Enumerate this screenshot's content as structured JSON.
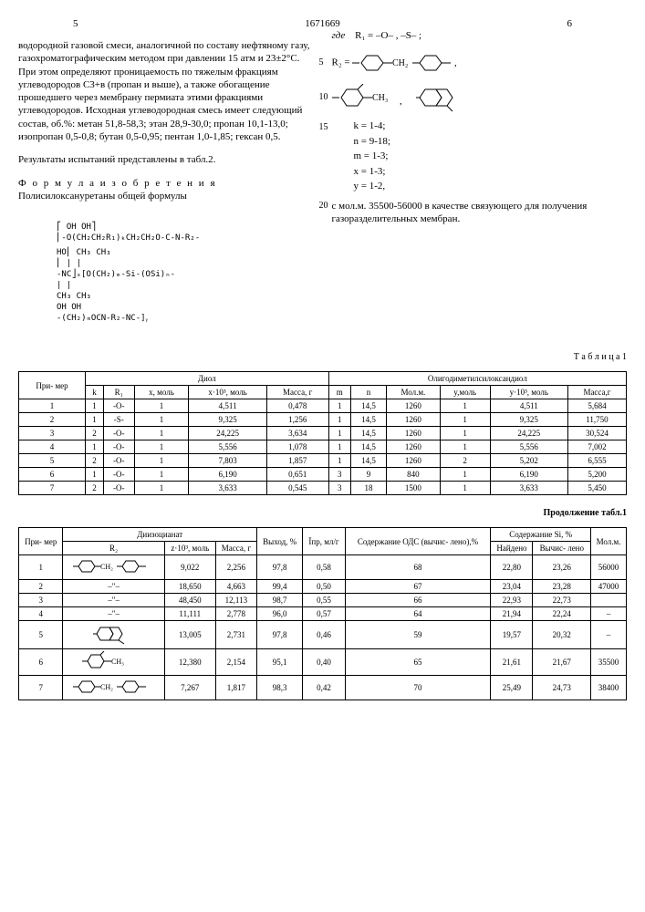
{
  "header": {
    "left_page": "5",
    "doc_number": "1671669",
    "right_page": "6"
  },
  "left_col": {
    "p1": "водородной газовой смеси, аналогичной по составу нефтяному газу, газохроматографическим методом при давлении 15 атм и 23±2°С. При этом определяют проницаемость по тяжелым фракциям углеводородов C3+в (пропан и выше), а также обогащение прошедшего через мембрану пермиата этими фракциями углеводородов. Исходная углеводородная смесь имеет следующий состав, об.%: метан 51,8-58,3; этан 28,9-30,0; пропан 10,1-13,0; изопропан 0,5-0,8; бутан 0,5-0,95; пентан 1,0-1,85; гексан 0,5.",
    "p2": "Результаты испытаний представлены в табл.2.",
    "p3_title": "Ф о р м у л а  и з о б р е т е н и я",
    "p3": "Полисилоксануретаны общей формулы"
  },
  "right_col": {
    "where": "где",
    "r1_label": "R₁ = –O– , –S– ;",
    "r2_label": "R₂ =",
    "params": {
      "k": "k = 1-4;",
      "n": "n = 9-18;",
      "m": "m = 1-3;",
      "x": "x = 1-3;",
      "y": "y = 1-2,"
    },
    "tail": "с мол.м. 35500-56000 в качестве связующего для получения газоразделительных мембран."
  },
  "marks": {
    "m5": "5",
    "m10": "10",
    "m15": "15",
    "m20": "20"
  },
  "table1": {
    "title": "Т а б л и ц а 1",
    "group_diol": "Диол",
    "group_odms": "Олигодиметилсилоксандиол",
    "head": {
      "primer": "При-\nмер",
      "k": "k",
      "r1": "R₁",
      "xmol": "x,\nмоль",
      "x103": "x·10³,\nмоль",
      "massg": "Масса,\nг",
      "m_": "m",
      "n_": "n",
      "molm": "Мол.м.",
      "ymol": "y,моль",
      "y103": "y·10³,\nмоль",
      "massg2": "Масса,г"
    },
    "rows": [
      [
        "1",
        "1",
        "-O-",
        "1",
        "4,511",
        "0,478",
        "1",
        "14,5",
        "1260",
        "1",
        "4,511",
        "5,684"
      ],
      [
        "2",
        "1",
        "-S-",
        "1",
        "9,325",
        "1,256",
        "1",
        "14,5",
        "1260",
        "1",
        "9,325",
        "11,750"
      ],
      [
        "3",
        "2",
        "-O-",
        "1",
        "24,225",
        "3,634",
        "1",
        "14,5",
        "1260",
        "1",
        "24,225",
        "30,524"
      ],
      [
        "4",
        "1",
        "-O-",
        "1",
        "5,556",
        "1,078",
        "1",
        "14,5",
        "1260",
        "1",
        "5,556",
        "7,002"
      ],
      [
        "5",
        "2",
        "-O-",
        "1",
        "7,803",
        "1,857",
        "1",
        "14,5",
        "1260",
        "2",
        "5,202",
        "6,555"
      ],
      [
        "6",
        "1",
        "-O-",
        "1",
        "6,190",
        "0,651",
        "3",
        "9",
        "840",
        "1",
        "6,190",
        "5,200"
      ],
      [
        "7",
        "2",
        "-O-",
        "1",
        "3,633",
        "0,545",
        "3",
        "18",
        "1500",
        "1",
        "3,633",
        "5,450"
      ]
    ]
  },
  "table1b": {
    "cont": "Продолжение табл.1",
    "group_diiso": "Диизоцианат",
    "head": {
      "primer": "При-\nмер",
      "r2": "R₂",
      "z103": "z·10³,\nмоль",
      "massg": "Масса,\nг",
      "vyhod": "Выход,\n%",
      "ipr": "Īпр,\nмл/г",
      "ods": "Содержание\nОДС (вычис-\nлено),%",
      "si": "Содержание Si, %",
      "najd": "Найдено",
      "vych": "Вычис-\nлено",
      "molm": "Мол.м."
    },
    "rows": [
      {
        "n": "1",
        "r2": "ph-ch2-ph",
        "z": "9,022",
        "m": "2,256",
        "v": "97,8",
        "i": "0,58",
        "o": "68",
        "sn": "22,80",
        "sv": "23,26",
        "mm": "56000"
      },
      {
        "n": "2",
        "r2": "same",
        "z": "18,650",
        "m": "4,663",
        "v": "99,4",
        "i": "0,50",
        "o": "67",
        "sn": "23,04",
        "sv": "23,28",
        "mm": "47000"
      },
      {
        "n": "3",
        "r2": "same",
        "z": "48,450",
        "m": "12,113",
        "v": "98,7",
        "i": "0,55",
        "o": "66",
        "sn": "22,93",
        "sv": "22,73",
        "mm": ""
      },
      {
        "n": "4",
        "r2": "same",
        "z": "11,111",
        "m": "2,778",
        "v": "96,0",
        "i": "0,57",
        "o": "64",
        "sn": "21,94",
        "sv": "22,24",
        "mm": "–"
      },
      {
        "n": "5",
        "r2": "naph",
        "z": "13,005",
        "m": "2,731",
        "v": "97,8",
        "i": "0,46",
        "o": "59",
        "sn": "19,57",
        "sv": "20,32",
        "mm": "–"
      },
      {
        "n": "6",
        "r2": "ph-ch3",
        "z": "12,380",
        "m": "2,154",
        "v": "95,1",
        "i": "0,40",
        "o": "65",
        "sn": "21,61",
        "sv": "21,67",
        "mm": "35500"
      },
      {
        "n": "7",
        "r2": "ph-ch2-ph",
        "z": "7,267",
        "m": "1,817",
        "v": "98,3",
        "i": "0,42",
        "o": "70",
        "sn": "25,49",
        "sv": "24,73",
        "mm": "38400"
      }
    ]
  },
  "colors": {
    "text": "#000000",
    "bg": "#ffffff",
    "border": "#000000"
  }
}
